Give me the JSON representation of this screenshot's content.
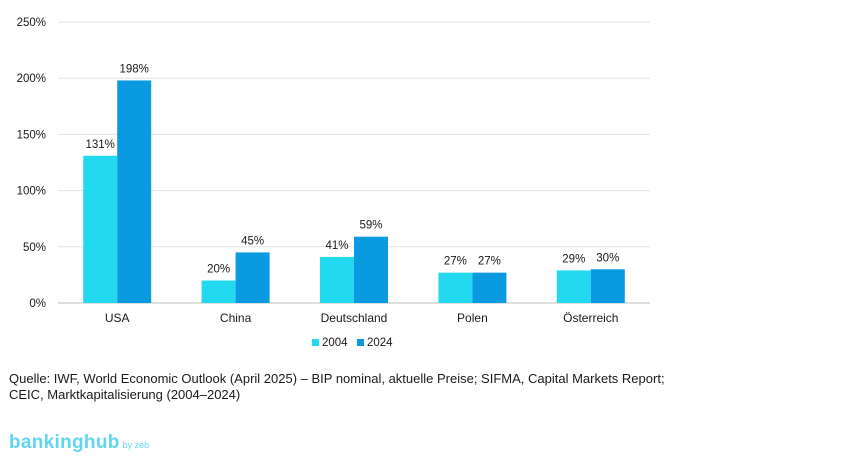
{
  "chart_data": {
    "type": "bar",
    "categories": [
      "USA",
      "China",
      "Deutschland",
      "Polen",
      "Österreich"
    ],
    "series": [
      {
        "name": "2004",
        "values": [
          131,
          20,
          41,
          27,
          29
        ],
        "labels": [
          "131%",
          "20%",
          "41%",
          "27%",
          "29%"
        ],
        "color": "#22d9f0"
      },
      {
        "name": "2024",
        "values": [
          198,
          45,
          59,
          27,
          30
        ],
        "labels": [
          "198%",
          "45%",
          "59%",
          "27%",
          "30%"
        ],
        "color": "#0a9ae0"
      }
    ],
    "yticks": [
      "0%",
      "50%",
      "100%",
      "150%",
      "200%",
      "250%"
    ],
    "ylim": [
      0,
      250
    ],
    "grid": true,
    "legend_position": "bottom-center"
  },
  "source_text": "Quelle: IWF, World Economic Outlook (April 2025) – BIP nominal, aktuelle Preise; SIFMA, Capital Markets Report; CEIC, Marktkapitalisierung (2004–2024)",
  "brand": {
    "name": "bankinghub",
    "suffix": "by zeb",
    "color": "#5fd6f0"
  }
}
